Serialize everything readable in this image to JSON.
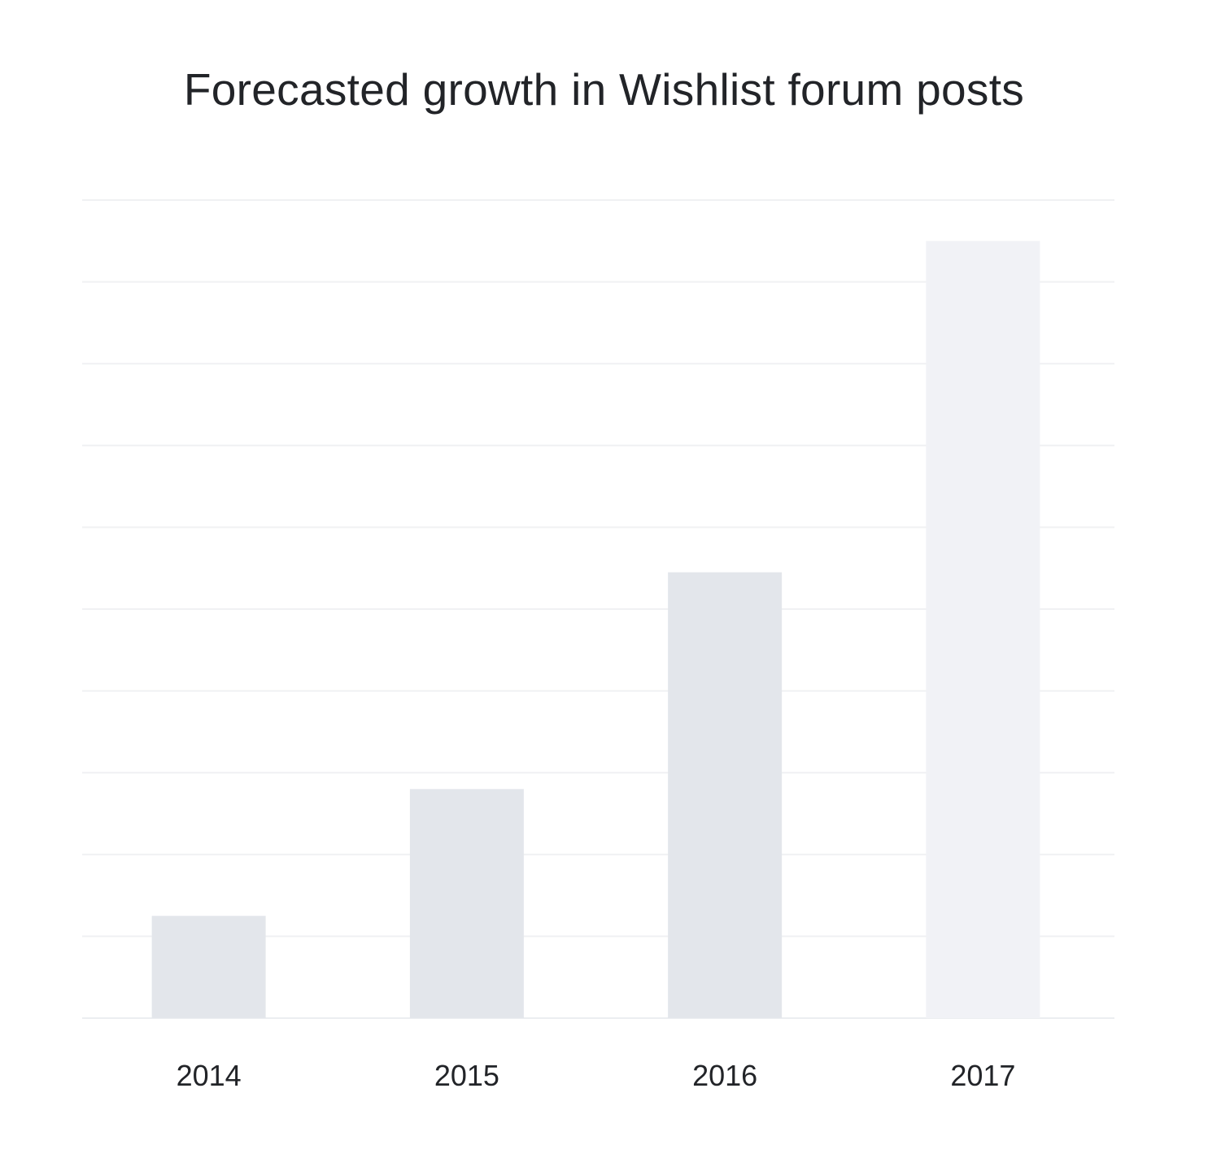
{
  "chart_data": {
    "type": "bar",
    "title": "Forecasted growth in Wishlist forum posts",
    "xlabel": "",
    "ylabel": "",
    "categories": [
      "2014",
      "2015",
      "2016",
      "2017"
    ],
    "values": [
      1.25,
      2.8,
      5.45,
      9.5
    ],
    "ylim": [
      0,
      10
    ],
    "grid": true,
    "forecast_categories": [
      "2017"
    ],
    "colors": {
      "actual": "#e3e6eb",
      "forecast": "#f1f2f6",
      "grid": "#f0f1f3",
      "text": "#222428"
    }
  }
}
